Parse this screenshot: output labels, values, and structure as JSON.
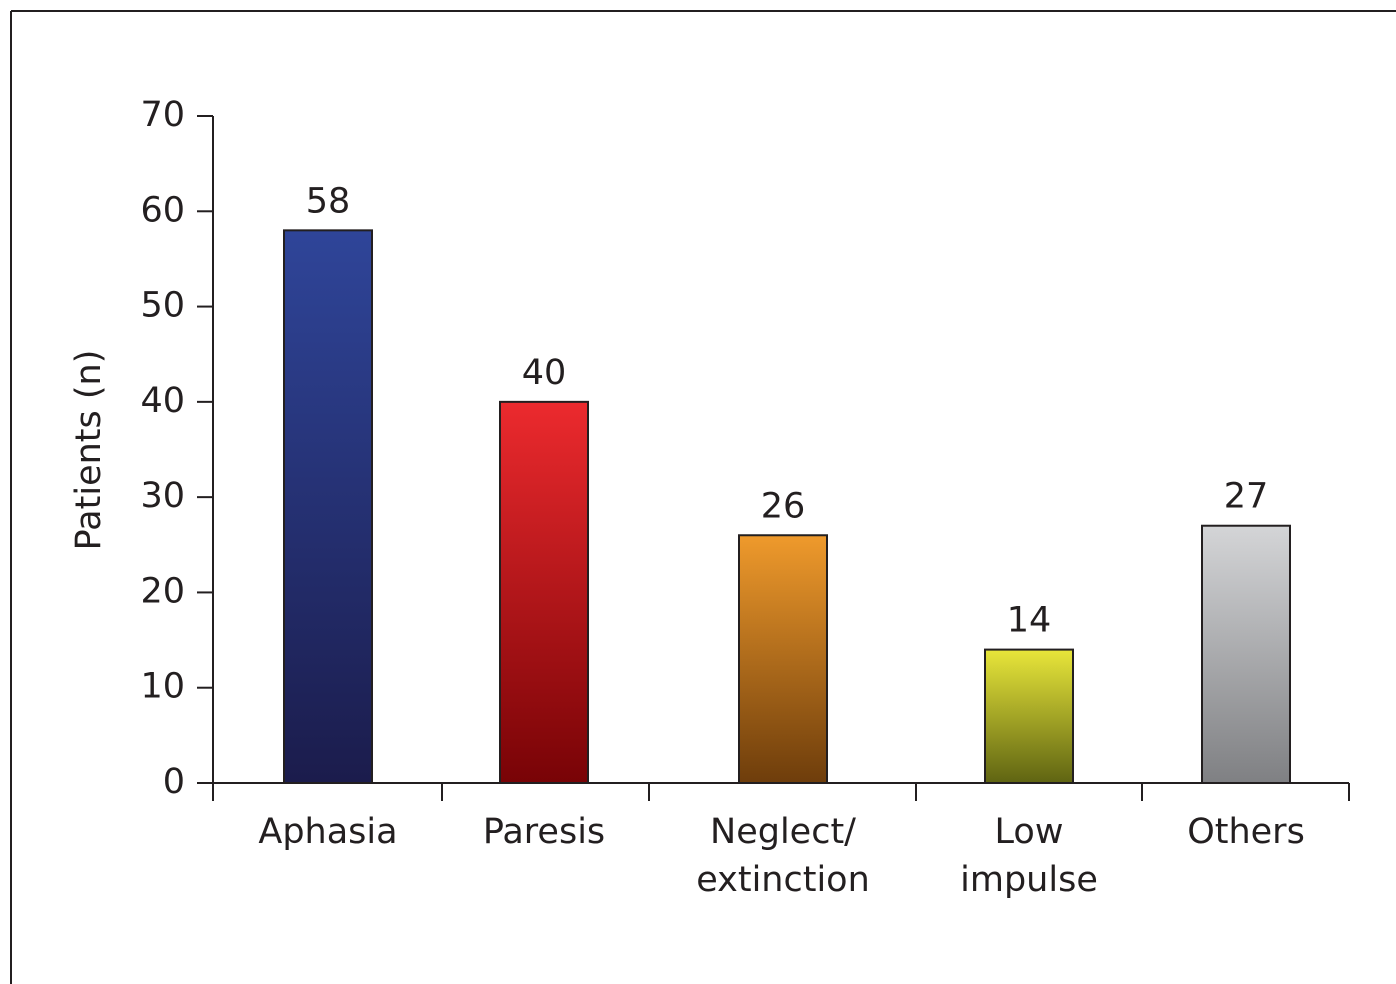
{
  "chart_data": {
    "type": "bar",
    "y_label": "Patients (n)",
    "categories": [
      "Aphasia",
      "Paresis",
      "Neglect/\nextinction",
      "Low\nimpulse",
      "Others"
    ],
    "values": [
      58,
      40,
      26,
      14,
      27
    ],
    "colors": [
      [
        "#2f4599",
        "#1b1c4c"
      ],
      [
        "#ec2a2e",
        "#780306"
      ],
      [
        "#ef9a2c",
        "#6e3d0b"
      ],
      [
        "#e8e63a",
        "#5f6412"
      ],
      [
        "#d4d5d7",
        "#7f8083"
      ]
    ],
    "ylim": [
      0,
      70
    ],
    "yticks": [
      0,
      10,
      20,
      30,
      40,
      50,
      60,
      70
    ]
  }
}
